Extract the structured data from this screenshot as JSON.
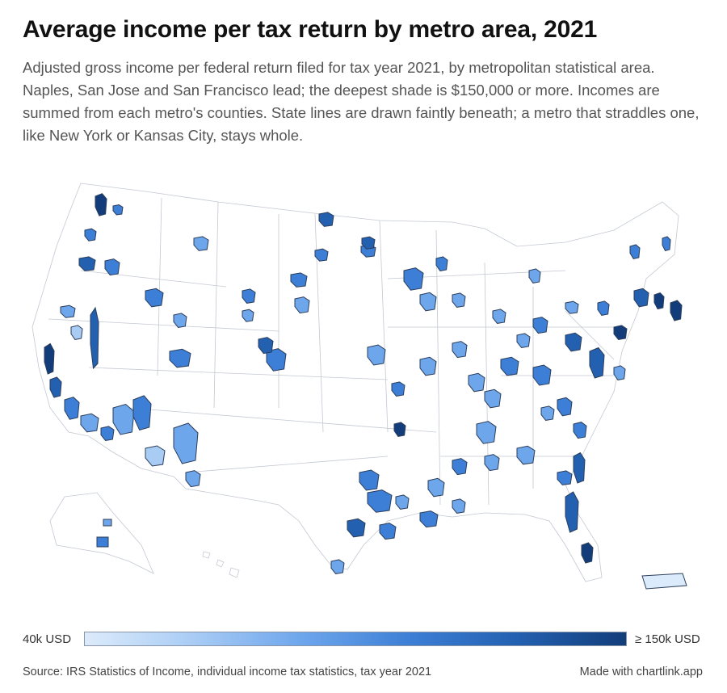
{
  "title": "Average income per tax return by metro area, 2021",
  "subtitle": "Adjusted gross income per federal return filed for tax year 2021, by metropolitan statistical area. Naples, San Jose and San Francisco lead; the deepest shade is $150,000 or more. Incomes are summed from each metro's counties. State lines are drawn faintly beneath; a metro that straddles one, like New York or Kansas City, stays whole.",
  "legend": {
    "min_label": "40k USD",
    "max_label": "≥ 150k USD",
    "colors": [
      "#dcebfb",
      "#a9ccf5",
      "#6ea6ec",
      "#3d7fd6",
      "#2360b0",
      "#123d7a"
    ]
  },
  "source": "Source: IRS Statistics of Income, individual income tax statistics, tax year 2021",
  "credit": "Made with chartlink.app",
  "colors": {
    "state_line": "#c3c8d2",
    "metro_stroke": "#2c3e5a",
    "land": "#ffffff"
  },
  "chart_data": {
    "type": "choropleth",
    "variable": "Adjusted gross income per federal return",
    "year": 2021,
    "scale": {
      "min": 40000,
      "max": 150000,
      "unit": "USD"
    },
    "leaders": [
      "Naples",
      "San Jose",
      "San Francisco"
    ],
    "examples_whole": [
      "New York",
      "Kansas City"
    ]
  }
}
